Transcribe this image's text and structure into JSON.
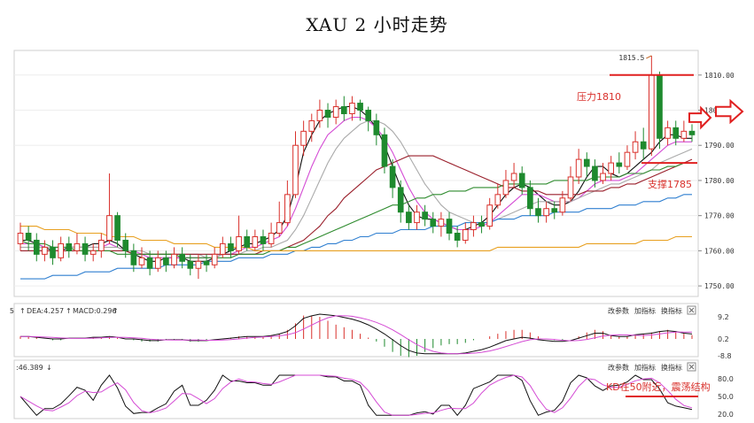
{
  "title": "XAU 2 小时走势",
  "chart_data": {
    "type": "candlestick",
    "title": "XAU 2 小时走势",
    "price_axis": {
      "ticks": [
        "1810.00",
        "1800.00",
        "1790.00",
        "1780.00",
        "1770.00",
        "1760.00",
        "1750.00"
      ],
      "ylim": [
        1747,
        1817
      ]
    },
    "peak_label": "1815.5",
    "annotations": {
      "resistance": {
        "label": "压力1810",
        "value": 1810
      },
      "support": {
        "label": "支撑1785",
        "value": 1785
      }
    },
    "macd_panel": {
      "header_prefix": "5",
      "dea_label": "DEA:4.257",
      "macd_label": "MACD:0.296",
      "ticks": [
        "9.2",
        "0.2",
        "-8.8"
      ],
      "buttons": [
        "改参数",
        "加指标",
        "换指标"
      ]
    },
    "kd_panel": {
      "header": ":46.389",
      "ticks": [
        "80.0",
        "50.0",
        "20.0"
      ],
      "buttons": [
        "改参数",
        "加指标",
        "换指标"
      ],
      "annotation": "KD在50附近，震荡结构"
    },
    "series": [
      {
        "ma": "fast",
        "color": "#111111",
        "values": [
          1763,
          1763,
          1762,
          1761,
          1760,
          1760,
          1761,
          1761,
          1761,
          1762,
          1762,
          1763,
          1762,
          1760,
          1759,
          1758,
          1757,
          1757,
          1758,
          1758,
          1758,
          1757,
          1757,
          1757,
          1758,
          1759,
          1760,
          1761,
          1762,
          1762,
          1763,
          1764,
          1766,
          1770,
          1778,
          1788,
          1793,
          1797,
          1799,
          1800,
          1801,
          1801,
          1800,
          1798,
          1795,
          1790,
          1784,
          1778,
          1773,
          1770,
          1769,
          1769,
          1768,
          1767,
          1766,
          1766,
          1767,
          1768,
          1770,
          1773,
          1776,
          1778,
          1779,
          1778,
          1776,
          1774,
          1773,
          1773,
          1774,
          1777,
          1781,
          1784,
          1784,
          1782,
          1781,
          1782,
          1784,
          1786,
          1788,
          1791,
          1793,
          1793,
          1792,
          1792
        ]
      },
      {
        "ma": "mid",
        "color": "#d44bd4",
        "values": [
          1762,
          1762,
          1762,
          1761,
          1761,
          1761,
          1761,
          1761,
          1761,
          1761,
          1761,
          1762,
          1761,
          1760,
          1760,
          1759,
          1758,
          1758,
          1758,
          1758,
          1758,
          1758,
          1758,
          1758,
          1758,
          1759,
          1759,
          1760,
          1761,
          1761,
          1762,
          1763,
          1764,
          1767,
          1772,
          1778,
          1784,
          1789,
          1793,
          1795,
          1797,
          1798,
          1798,
          1797,
          1795,
          1792,
          1788,
          1783,
          1778,
          1774,
          1771,
          1769,
          1768,
          1767,
          1766,
          1766,
          1766,
          1767,
          1768,
          1770,
          1772,
          1774,
          1776,
          1776,
          1776,
          1775,
          1774,
          1774,
          1774,
          1775,
          1777,
          1779,
          1780,
          1780,
          1780,
          1781,
          1782,
          1784,
          1786,
          1788,
          1790,
          1791,
          1791,
          1791
        ]
      },
      {
        "ma": "slow",
        "color": "#aaaaaa",
        "values": [
          1761,
          1761,
          1761,
          1761,
          1761,
          1761,
          1761,
          1761,
          1761,
          1761,
          1761,
          1761,
          1761,
          1760,
          1760,
          1760,
          1759,
          1759,
          1759,
          1759,
          1759,
          1759,
          1759,
          1758,
          1758,
          1759,
          1759,
          1759,
          1760,
          1760,
          1761,
          1761,
          1762,
          1763,
          1766,
          1770,
          1775,
          1780,
          1785,
          1789,
          1792,
          1794,
          1796,
          1797,
          1797,
          1796,
          1794,
          1791,
          1787,
          1783,
          1779,
          1776,
          1773,
          1771,
          1770,
          1769,
          1768,
          1768,
          1768,
          1769,
          1770,
          1771,
          1772,
          1773,
          1774,
          1774,
          1774,
          1774,
          1774,
          1775,
          1776,
          1777,
          1778,
          1779,
          1779,
          1780,
          1781,
          1782,
          1783,
          1785,
          1786,
          1787,
          1788,
          1789
        ]
      },
      {
        "ma": "ma60",
        "color": "#9a1f2b",
        "values": [
          1760,
          1760,
          1760,
          1760,
          1760,
          1760,
          1760,
          1760,
          1760,
          1760,
          1760,
          1760,
          1760,
          1760,
          1759,
          1759,
          1759,
          1759,
          1759,
          1759,
          1759,
          1759,
          1759,
          1759,
          1759,
          1759,
          1759,
          1759,
          1759,
          1759,
          1760,
          1760,
          1760,
          1761,
          1762,
          1763,
          1765,
          1767,
          1770,
          1772,
          1775,
          1777,
          1779,
          1781,
          1783,
          1784,
          1785,
          1786,
          1787,
          1787,
          1787,
          1787,
          1786,
          1785,
          1784,
          1783,
          1782,
          1781,
          1780,
          1779,
          1778,
          1778,
          1777,
          1777,
          1777,
          1776,
          1776,
          1776,
          1776,
          1776,
          1777,
          1777,
          1777,
          1778,
          1778,
          1779,
          1779,
          1780,
          1781,
          1782,
          1783,
          1784,
          1785,
          1786
        ]
      },
      {
        "ma": "ma120",
        "color": "#2e8b2e",
        "values": [
          1763,
          1762,
          1762,
          1762,
          1761,
          1761,
          1761,
          1760,
          1760,
          1760,
          1760,
          1760,
          1759,
          1759,
          1759,
          1759,
          1759,
          1759,
          1759,
          1759,
          1758,
          1758,
          1758,
          1758,
          1758,
          1758,
          1758,
          1759,
          1759,
          1759,
          1759,
          1760,
          1760,
          1761,
          1761,
          1762,
          1763,
          1764,
          1765,
          1766,
          1767,
          1768,
          1769,
          1770,
          1771,
          1772,
          1773,
          1773,
          1774,
          1775,
          1775,
          1776,
          1776,
          1777,
          1777,
          1777,
          1778,
          1778,
          1778,
          1778,
          1779,
          1779,
          1779,
          1779,
          1779,
          1779,
          1780,
          1780,
          1780,
          1780,
          1780,
          1781,
          1781,
          1781,
          1781,
          1782,
          1782,
          1782,
          1783,
          1783,
          1784,
          1784,
          1785,
          1785
        ]
      },
      {
        "ma": "ma200",
        "color": "#2f7fd0",
        "values": [
          1752,
          1752,
          1752,
          1752,
          1753,
          1753,
          1753,
          1753,
          1754,
          1754,
          1754,
          1754,
          1755,
          1755,
          1755,
          1755,
          1755,
          1755,
          1756,
          1756,
          1756,
          1756,
          1756,
          1757,
          1757,
          1757,
          1757,
          1758,
          1758,
          1758,
          1758,
          1759,
          1759,
          1759,
          1760,
          1760,
          1761,
          1761,
          1762,
          1762,
          1763,
          1763,
          1764,
          1764,
          1765,
          1765,
          1765,
          1766,
          1766,
          1766,
          1766,
          1767,
          1767,
          1767,
          1767,
          1768,
          1768,
          1768,
          1768,
          1769,
          1769,
          1769,
          1770,
          1770,
          1770,
          1770,
          1771,
          1771,
          1771,
          1771,
          1772,
          1772,
          1772,
          1772,
          1773,
          1773,
          1773,
          1774,
          1774,
          1774,
          1775,
          1775,
          1776,
          1776
        ]
      },
      {
        "ma": "ma400",
        "color": "#e8a020",
        "values": [
          1767,
          1767,
          1767,
          1766,
          1766,
          1766,
          1766,
          1765,
          1765,
          1765,
          1765,
          1764,
          1764,
          1764,
          1764,
          1763,
          1763,
          1763,
          1763,
          1762,
          1762,
          1762,
          1762,
          1762,
          1761,
          1761,
          1761,
          1761,
          1761,
          1760,
          1760,
          1760,
          1760,
          1760,
          1760,
          1760,
          1760,
          1760,
          1760,
          1760,
          1760,
          1760,
          1760,
          1760,
          1760,
          1760,
          1760,
          1760,
          1760,
          1760,
          1760,
          1760,
          1760,
          1760,
          1760,
          1760,
          1760,
          1760,
          1760,
          1761,
          1761,
          1761,
          1761,
          1761,
          1761,
          1761,
          1761,
          1761,
          1761,
          1761,
          1762,
          1762,
          1762,
          1762,
          1762,
          1762,
          1762,
          1763,
          1763,
          1763,
          1763,
          1764,
          1764,
          1764
        ]
      }
    ],
    "candles": [
      [
        1762,
        1765,
        1768,
        1760
      ],
      [
        1765,
        1763,
        1767,
        1760
      ],
      [
        1763,
        1759,
        1765,
        1757
      ],
      [
        1759,
        1761,
        1763,
        1757
      ],
      [
        1761,
        1758,
        1763,
        1756
      ],
      [
        1758,
        1762,
        1764,
        1757
      ],
      [
        1762,
        1760,
        1764,
        1758
      ],
      [
        1760,
        1762,
        1765,
        1759
      ],
      [
        1762,
        1759,
        1764,
        1757
      ],
      [
        1759,
        1760,
        1762,
        1757
      ],
      [
        1760,
        1763,
        1765,
        1758
      ],
      [
        1763,
        1770,
        1782,
        1762
      ],
      [
        1770,
        1763,
        1771,
        1761
      ],
      [
        1763,
        1760,
        1765,
        1758
      ],
      [
        1760,
        1756,
        1762,
        1754
      ],
      [
        1756,
        1758,
        1761,
        1755
      ],
      [
        1758,
        1755,
        1760,
        1753
      ],
      [
        1755,
        1758,
        1760,
        1754
      ],
      [
        1758,
        1756,
        1760,
        1754
      ],
      [
        1756,
        1759,
        1761,
        1755
      ],
      [
        1759,
        1757,
        1761,
        1755
      ],
      [
        1757,
        1755,
        1759,
        1753
      ],
      [
        1755,
        1757,
        1759,
        1752
      ],
      [
        1757,
        1756,
        1759,
        1754
      ],
      [
        1756,
        1759,
        1761,
        1755
      ],
      [
        1759,
        1762,
        1764,
        1758
      ],
      [
        1762,
        1760,
        1764,
        1758
      ],
      [
        1760,
        1764,
        1770,
        1759
      ],
      [
        1764,
        1761,
        1766,
        1760
      ],
      [
        1761,
        1764,
        1766,
        1760
      ],
      [
        1764,
        1762,
        1766,
        1760
      ],
      [
        1762,
        1765,
        1768,
        1761
      ],
      [
        1765,
        1768,
        1774,
        1764
      ],
      [
        1768,
        1776,
        1780,
        1767
      ],
      [
        1776,
        1790,
        1794,
        1775
      ],
      [
        1790,
        1794,
        1797,
        1787
      ],
      [
        1794,
        1797,
        1799,
        1791
      ],
      [
        1797,
        1800,
        1803,
        1795
      ],
      [
        1800,
        1798,
        1802,
        1795
      ],
      [
        1798,
        1801,
        1803,
        1796
      ],
      [
        1801,
        1799,
        1804,
        1797
      ],
      [
        1799,
        1802,
        1804,
        1797
      ],
      [
        1802,
        1800,
        1803,
        1797
      ],
      [
        1800,
        1797,
        1801,
        1794
      ],
      [
        1797,
        1793,
        1799,
        1790
      ],
      [
        1793,
        1784,
        1795,
        1782
      ],
      [
        1784,
        1778,
        1786,
        1775
      ],
      [
        1778,
        1771,
        1780,
        1768
      ],
      [
        1771,
        1768,
        1773,
        1766
      ],
      [
        1768,
        1771,
        1773,
        1766
      ],
      [
        1771,
        1769,
        1773,
        1767
      ],
      [
        1769,
        1767,
        1771,
        1765
      ],
      [
        1767,
        1769,
        1771,
        1764
      ],
      [
        1769,
        1765,
        1771,
        1763
      ],
      [
        1765,
        1763,
        1767,
        1761
      ],
      [
        1763,
        1766,
        1768,
        1762
      ],
      [
        1766,
        1768,
        1770,
        1764
      ],
      [
        1768,
        1767,
        1770,
        1765
      ],
      [
        1767,
        1773,
        1775,
        1766
      ],
      [
        1773,
        1776,
        1779,
        1772
      ],
      [
        1776,
        1780,
        1783,
        1775
      ],
      [
        1780,
        1782,
        1785,
        1778
      ],
      [
        1782,
        1778,
        1784,
        1776
      ],
      [
        1778,
        1772,
        1780,
        1770
      ],
      [
        1772,
        1770,
        1775,
        1768
      ],
      [
        1770,
        1772,
        1774,
        1768
      ],
      [
        1772,
        1771,
        1774,
        1769
      ],
      [
        1771,
        1775,
        1777,
        1770
      ],
      [
        1775,
        1781,
        1784,
        1774
      ],
      [
        1781,
        1786,
        1789,
        1779
      ],
      [
        1786,
        1784,
        1788,
        1781
      ],
      [
        1784,
        1780,
        1786,
        1778
      ],
      [
        1780,
        1782,
        1785,
        1779
      ],
      [
        1782,
        1785,
        1787,
        1780
      ],
      [
        1785,
        1784,
        1788,
        1782
      ],
      [
        1784,
        1788,
        1790,
        1783
      ],
      [
        1788,
        1791,
        1794,
        1786
      ],
      [
        1791,
        1789,
        1795,
        1786
      ],
      [
        1789,
        1810,
        1815.5,
        1787
      ],
      [
        1810,
        1792,
        1811,
        1789
      ],
      [
        1792,
        1795,
        1797,
        1790
      ],
      [
        1795,
        1792,
        1797,
        1790
      ],
      [
        1792,
        1794,
        1797,
        1791
      ],
      [
        1794,
        1793,
        1796,
        1791
      ]
    ]
  }
}
